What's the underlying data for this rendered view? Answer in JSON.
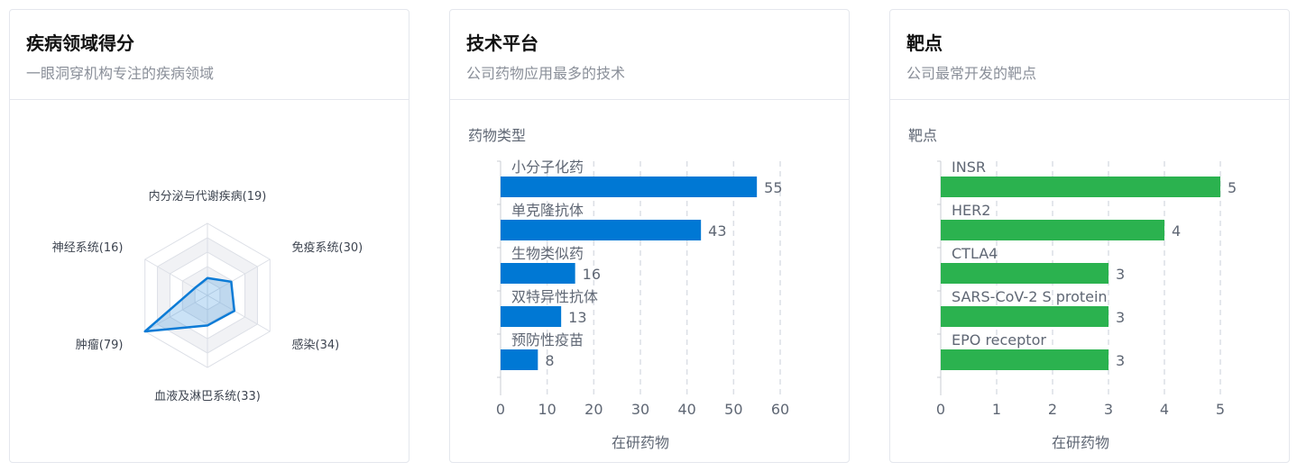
{
  "cards": [
    {
      "title": "疾病领域得分",
      "subtitle": "一眼洞穿机构专注的疾病领域"
    },
    {
      "title": "技术平台",
      "subtitle": "公司药物应用最多的技术"
    },
    {
      "title": "靶点",
      "subtitle": "公司最常开发的靶点"
    }
  ],
  "colors": {
    "radar": "#0c7bd6",
    "bar_blue": "#0078d4",
    "bar_green": "#2bb24f",
    "grid": "#dcdfe6",
    "text": "#5f6774"
  },
  "chart_data": [
    {
      "type": "radar",
      "indicators": [
        {
          "label": "内分泌与代谢疾病(19)",
          "value": 19
        },
        {
          "label": "免疫系统(30)",
          "value": 30
        },
        {
          "label": "感染(34)",
          "value": 34
        },
        {
          "label": "血液及淋巴系统(33)",
          "value": 33
        },
        {
          "label": "肿瘤(79)",
          "value": 79
        },
        {
          "label": "神经系统(16)",
          "value": 16
        }
      ],
      "max": 79
    },
    {
      "type": "bar",
      "orientation": "horizontal",
      "ylabel": "药物类型",
      "xlabel": "在研药物",
      "categories": [
        "小分子化药",
        "单克隆抗体",
        "生物类似药",
        "双特异性抗体",
        "预防性疫苗"
      ],
      "values": [
        55,
        43,
        16,
        13,
        8
      ],
      "xlim": [
        0,
        60
      ],
      "xticks": [
        0,
        10,
        20,
        30,
        40,
        50,
        60
      ]
    },
    {
      "type": "bar",
      "orientation": "horizontal",
      "ylabel": "靶点",
      "xlabel": "在研药物",
      "categories": [
        "INSR",
        "HER2",
        "CTLA4",
        "SARS-CoV-2 S protein",
        "EPO receptor"
      ],
      "values": [
        5,
        4,
        3,
        3,
        3
      ],
      "xlim": [
        0,
        5
      ],
      "xticks": [
        0,
        1,
        2,
        3,
        4,
        5
      ]
    }
  ]
}
